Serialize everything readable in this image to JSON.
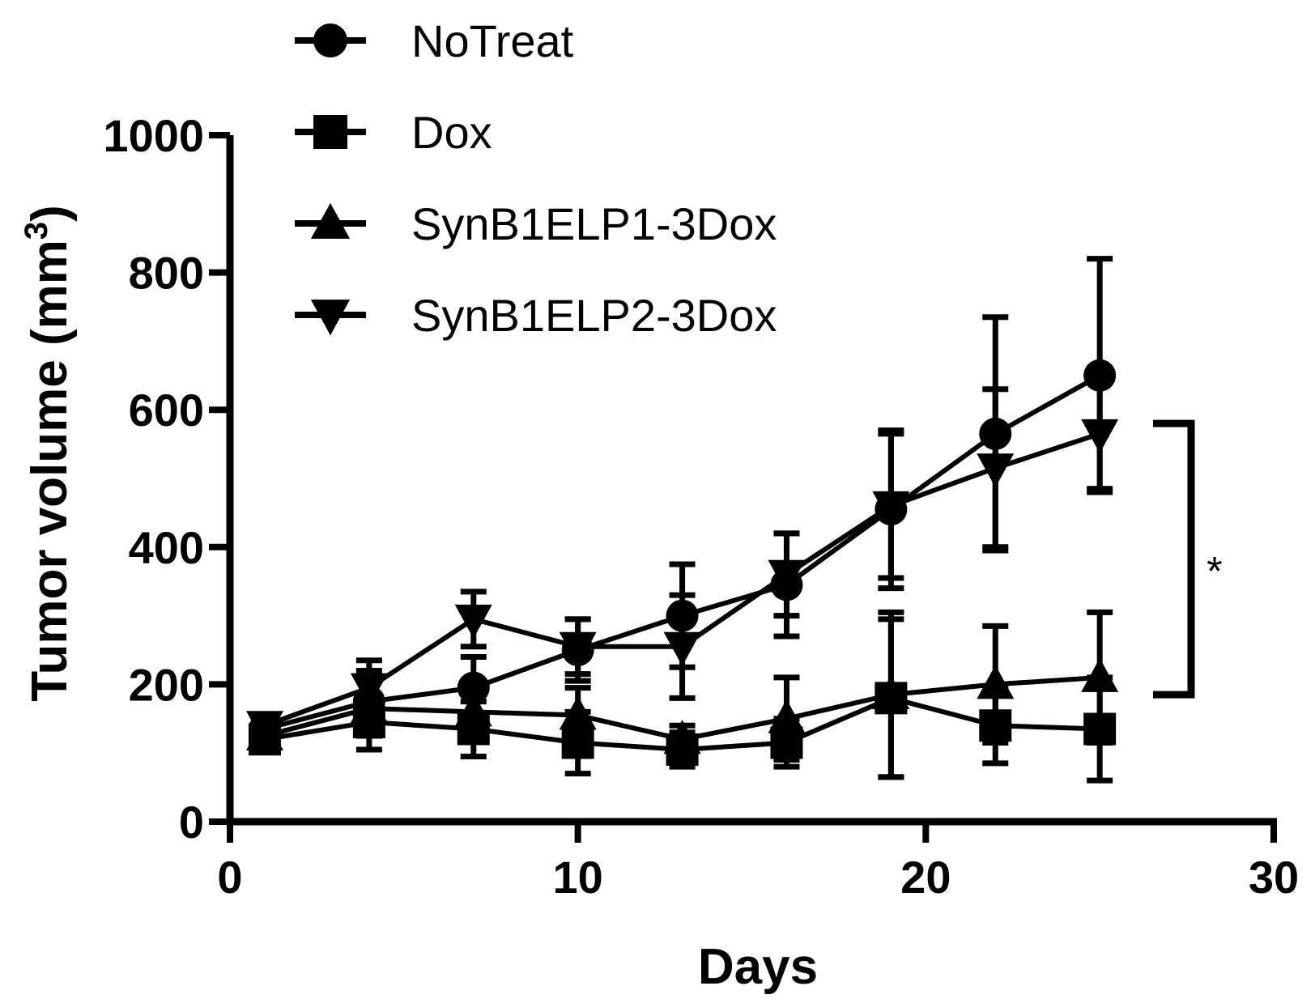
{
  "chart_data": {
    "type": "line",
    "title": "",
    "xlabel": "Days",
    "ylabel": "Tumor volume (mm",
    "ylabel_superscript": "3",
    "ylabel_close": ")",
    "xlim": [
      0,
      30
    ],
    "ylim": [
      0,
      1000
    ],
    "xticks": [
      0,
      10,
      20,
      30
    ],
    "yticks": [
      0,
      200,
      400,
      600,
      800,
      1000
    ],
    "grid": false,
    "legend_position": "top",
    "x": [
      1,
      4,
      7,
      10,
      13,
      16,
      19,
      22,
      25
    ],
    "series": [
      {
        "name": "NoTreat",
        "marker": "circle",
        "values": [
          135,
          175,
          195,
          250,
          300,
          345,
          455,
          565,
          650
        ],
        "errors": [
          15,
          45,
          45,
          45,
          75,
          75,
          115,
          170,
          170
        ]
      },
      {
        "name": "Dox",
        "marker": "square",
        "values": [
          120,
          145,
          135,
          115,
          105,
          115,
          180,
          140,
          135
        ],
        "errors": [
          15,
          40,
          40,
          45,
          25,
          35,
          115,
          55,
          75
        ]
      },
      {
        "name": "SynB1ELP1-3Dox",
        "marker": "triangle-up",
        "values": [
          125,
          165,
          160,
          155,
          120,
          150,
          185,
          200,
          210
        ],
        "errors": [
          15,
          40,
          40,
          40,
          20,
          60,
          120,
          85,
          95
        ]
      },
      {
        "name": "SynB1ELP2-3Dox",
        "marker": "triangle-down",
        "values": [
          140,
          195,
          295,
          255,
          255,
          360,
          460,
          515,
          565
        ],
        "errors": [
          15,
          40,
          40,
          40,
          75,
          60,
          105,
          115,
          80
        ]
      }
    ],
    "annotations": [
      {
        "type": "significance-bracket",
        "text": "*",
        "from": 580,
        "to": 185
      }
    ]
  }
}
